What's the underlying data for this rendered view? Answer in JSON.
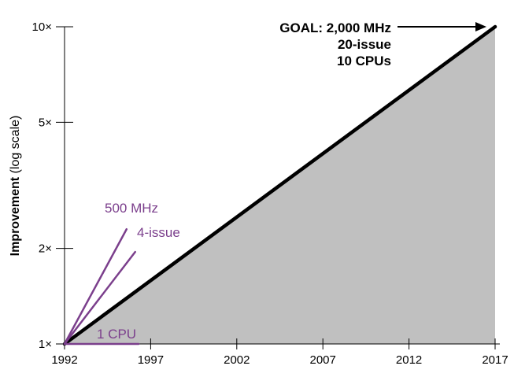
{
  "chart_data": {
    "type": "area",
    "ylabel_bold": "Improvement",
    "ylabel_rest": " (log scale)",
    "xlabel": "",
    "x_ticks": [
      1992,
      1997,
      2002,
      2007,
      2012,
      2017
    ],
    "x_tick_labels": [
      "1992",
      "1997",
      "2002",
      "2007",
      "2012",
      "2017"
    ],
    "y_ticks": [
      1,
      2,
      5,
      10
    ],
    "y_tick_labels": [
      "1×",
      "2×",
      "5×",
      "10×"
    ],
    "xlim": [
      1992,
      2017
    ],
    "ylim": [
      1,
      10
    ],
    "y_scale": "log",
    "grid": false,
    "series": [
      {
        "name": "",
        "style": "filled area with bold line",
        "color": "#000000",
        "fill": "#c0c0c0",
        "x": [
          1992,
          2017
        ],
        "y": [
          1,
          10
        ]
      },
      {
        "name": "500 MHz",
        "style": "line",
        "color": "#7b3f8c",
        "x": [
          1992,
          1995.6
        ],
        "y": [
          1,
          2.3
        ]
      },
      {
        "name": "4-issue",
        "style": "line",
        "color": "#7b3f8c",
        "x": [
          1992,
          1996.1
        ],
        "y": [
          1,
          1.95
        ]
      },
      {
        "name": "1 CPU",
        "style": "line",
        "color": "#7b3f8c",
        "x": [
          1992,
          1996.3
        ],
        "y": [
          1,
          1
        ]
      }
    ],
    "annotations": {
      "goal_lines": [
        "GOAL: 2,000 MHz",
        "20-issue",
        "10 CPUs"
      ],
      "label_500mhz": "500 MHz",
      "label_4issue": "4-issue",
      "label_1cpu": "1 CPU"
    },
    "colors": {
      "accent": "#7b3f8c",
      "fill": "#c0c0c0",
      "axis": "#000000"
    }
  }
}
